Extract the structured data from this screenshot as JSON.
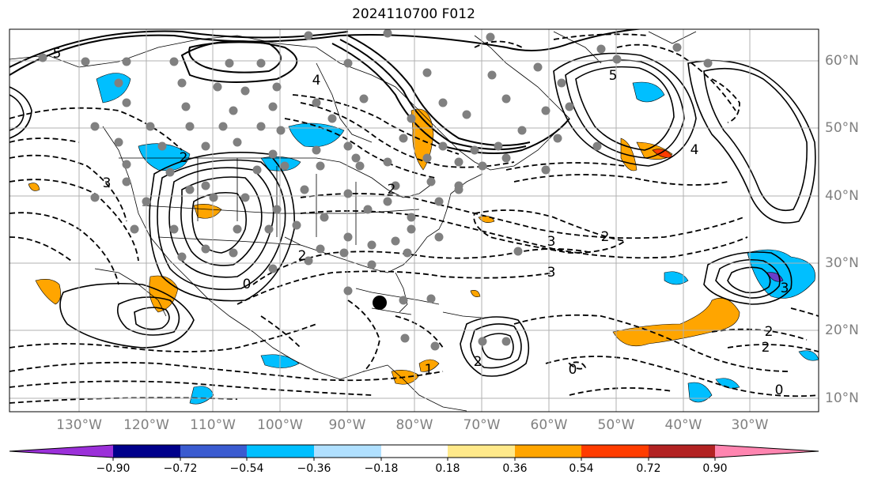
{
  "title": "2024110700 F012",
  "lon_labels": [
    "130°W",
    "120°W",
    "110°W",
    "100°W",
    "90°W",
    "80°W",
    "70°W",
    "60°W",
    "50°W",
    "40°W",
    "30°W"
  ],
  "lat_labels": [
    "60°N",
    "50°N",
    "40°N",
    "30°N",
    "20°N",
    "10°N"
  ],
  "contour_labels": [
    "5",
    "4",
    "3",
    "2",
    "3",
    "2",
    "3",
    "0",
    "2",
    "5",
    "4",
    "3",
    "2",
    "1",
    "2",
    "0",
    "2",
    "0",
    "2"
  ],
  "colorbar": {
    "ticks": [
      "−0.90",
      "−0.72",
      "−0.54",
      "−0.36",
      "−0.18",
      "0.18",
      "0.36",
      "0.54",
      "0.72",
      "0.90"
    ],
    "colors": {
      "under": "#9b30d9",
      "bins": [
        "#7e3cc9",
        "#00008b",
        "#3a5bd0",
        "#00bfff",
        "#b0e0ff",
        "#ffffff",
        "#ffe98a",
        "#ffa500",
        "#ff3c00",
        "#b22222"
      ],
      "over": "#ff85b0"
    }
  },
  "shading_colors": {
    "negative": "#00bfff",
    "positive": "#ffa500",
    "strong_positive": "#ff3c00",
    "strong_negative": "#6a3dc9"
  },
  "contour_color": "#000000",
  "station_color": "#808080",
  "marker_color": "#000000"
}
